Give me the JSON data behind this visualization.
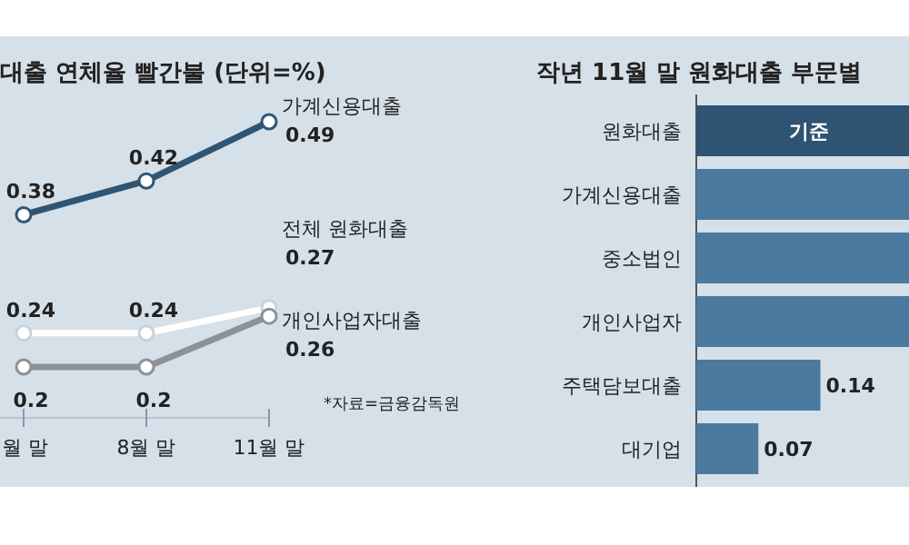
{
  "chart_data": [
    {
      "type": "line",
      "title": "대출 연체율 빨간불 (단위=%)",
      "categories": [
        "월 말",
        "8월 말",
        "11월 말"
      ],
      "marker": "circle",
      "data_labels": true,
      "series": [
        {
          "name": "가계신용대출",
          "color": "#2f5573",
          "values": [
            0.38,
            0.42,
            0.49
          ]
        },
        {
          "name": "전체 원화대출",
          "color": "#ffffff",
          "values": [
            0.24,
            0.24,
            0.27
          ]
        },
        {
          "name": "개인사업자대출",
          "color": "#8c9196",
          "values": [
            0.2,
            0.2,
            0.26
          ]
        }
      ],
      "annotations": [
        "*자료=금융감독원"
      ]
    },
    {
      "type": "bar",
      "orientation": "horizontal",
      "xlim": [
        0,
        0.24
      ],
      "title": "작년 11월 말 원화대출 부문별",
      "categories": [
        "원화대출",
        "가계신용대출",
        "중소법인",
        "개인사업자",
        "주택담보대출",
        "대기업"
      ],
      "values": [
        0.24,
        0.24,
        0.24,
        0.24,
        0.14,
        0.07
      ],
      "colors": [
        "#2e5373",
        "#4a7aa0",
        "#4a7aa0",
        "#4a7aa0",
        "#4a7aa0",
        "#4a7aa0"
      ],
      "value_labels": [
        "기준",
        null,
        null,
        null,
        "0.14",
        "0.07"
      ]
    }
  ]
}
